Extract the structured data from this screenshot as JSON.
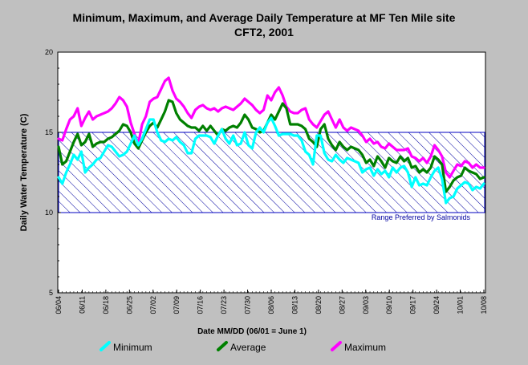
{
  "chart_data": {
    "type": "line",
    "title": "Minimum, Maximum, and Average Daily Temperature at MF Ten Mile site",
    "subtitle": "CFT2, 2001",
    "xlabel": "Date MM/DD (06/01 = June 1)",
    "ylabel": "Daily Water Temperature (C)",
    "ylim": [
      5,
      20
    ],
    "yticks": [
      5,
      10,
      15,
      20
    ],
    "x_start": "06/04",
    "x_end": "10/08",
    "xticks": [
      "06/04",
      "06/11",
      "06/18",
      "06/25",
      "07/02",
      "07/09",
      "07/16",
      "07/23",
      "07/30",
      "08/06",
      "08/13",
      "08/20",
      "08/27",
      "09/03",
      "09/10",
      "09/17",
      "09/24",
      "10/01",
      "10/08"
    ],
    "grid": false,
    "legend_position": "bottom",
    "band": {
      "y0": 10,
      "y1": 15,
      "label": "Range Preferred by Salmonids",
      "color": "#0000a0"
    },
    "series": [
      {
        "name": "Minimum",
        "color": "#00ffff",
        "values": [
          12.2,
          11.8,
          12.5,
          13.0,
          13.6,
          13.3,
          13.8,
          12.5,
          12.8,
          13.0,
          13.3,
          13.4,
          13.8,
          14.2,
          14.1,
          13.8,
          13.5,
          13.6,
          13.8,
          14.3,
          14.8,
          14.2,
          14.6,
          15.2,
          15.8,
          15.8,
          15.0,
          14.5,
          14.4,
          14.6,
          14.5,
          14.7,
          14.4,
          14.2,
          13.7,
          13.7,
          14.6,
          14.8,
          14.8,
          14.8,
          14.7,
          14.3,
          14.8,
          15.2,
          14.6,
          14.3,
          14.8,
          14.2,
          14.3,
          15.0,
          14.2,
          14.0,
          15.0,
          15.3,
          15.0,
          15.6,
          15.9,
          15.4,
          14.8,
          14.9,
          14.9,
          14.9,
          14.8,
          14.8,
          14.5,
          13.8,
          13.6,
          13.0,
          14.8,
          14.8,
          13.7,
          13.3,
          13.2,
          13.6,
          13.3,
          13.1,
          13.4,
          13.3,
          13.2,
          13.1,
          12.5,
          12.7,
          12.8,
          12.3,
          12.7,
          12.4,
          12.6,
          12.2,
          12.8,
          12.5,
          12.8,
          12.9,
          12.5,
          11.6,
          12.2,
          11.7,
          11.8,
          11.7,
          12.2,
          12.6,
          12.8,
          12.1,
          10.6,
          10.9,
          11.0,
          11.5,
          11.7,
          11.9,
          11.8,
          11.4,
          11.6,
          11.5,
          11.8
        ],
        "label": "Minimum"
      },
      {
        "name": "Average",
        "color": "#008000",
        "values": [
          14.1,
          13.0,
          13.2,
          13.8,
          14.4,
          14.9,
          14.2,
          14.4,
          14.9,
          14.1,
          14.3,
          14.4,
          14.4,
          14.6,
          14.7,
          14.9,
          15.1,
          15.5,
          15.4,
          15.0,
          14.3,
          14.0,
          14.5,
          15.0,
          15.4,
          15.6,
          15.3,
          15.8,
          16.3,
          17.0,
          16.9,
          16.2,
          15.8,
          15.6,
          15.4,
          15.3,
          15.3,
          15.1,
          15.4,
          15.1,
          15.4,
          15.1,
          14.8,
          15.2,
          15.1,
          15.3,
          15.4,
          15.3,
          15.6,
          16.1,
          15.8,
          15.3,
          15.2,
          15.0,
          15.1,
          15.6,
          16.1,
          15.8,
          16.3,
          16.8,
          16.5,
          15.5,
          15.5,
          15.5,
          15.4,
          15.2,
          14.6,
          14.4,
          14.1,
          15.2,
          15.5,
          14.6,
          14.2,
          13.9,
          14.4,
          14.1,
          13.9,
          14.1,
          14.0,
          13.9,
          13.6,
          13.1,
          13.3,
          12.9,
          13.5,
          13.2,
          12.8,
          13.4,
          13.2,
          13.1,
          13.5,
          13.2,
          13.4,
          12.8,
          12.9,
          12.5,
          12.7,
          12.5,
          12.8,
          13.5,
          13.3,
          13.0,
          11.3,
          11.6,
          12.0,
          12.2,
          12.3,
          12.8,
          12.6,
          12.5,
          12.4,
          12.1,
          12.2
        ],
        "label": "Average"
      },
      {
        "name": "Maximum",
        "color": "#ff00ff",
        "values": [
          14.6,
          14.5,
          15.2,
          15.8,
          16.0,
          16.5,
          15.4,
          15.9,
          16.3,
          15.8,
          16.0,
          16.1,
          16.2,
          16.3,
          16.5,
          16.8,
          17.2,
          17.0,
          16.6,
          15.6,
          14.9,
          14.3,
          15.5,
          16.0,
          16.9,
          17.1,
          17.2,
          17.7,
          18.2,
          18.4,
          17.6,
          17.1,
          16.9,
          16.6,
          16.2,
          15.9,
          16.4,
          16.6,
          16.7,
          16.5,
          16.4,
          16.5,
          16.3,
          16.5,
          16.6,
          16.5,
          16.4,
          16.6,
          16.8,
          17.1,
          16.9,
          16.7,
          16.4,
          16.2,
          16.4,
          17.3,
          17.0,
          17.5,
          17.8,
          17.3,
          16.6,
          16.3,
          16.2,
          16.2,
          16.4,
          16.5,
          15.8,
          15.5,
          15.3,
          15.7,
          16.1,
          16.3,
          15.8,
          15.3,
          15.8,
          15.3,
          15.1,
          15.3,
          15.2,
          15.1,
          14.8,
          14.4,
          14.6,
          14.3,
          14.4,
          14.1,
          14.0,
          14.3,
          14.1,
          13.9,
          13.9,
          13.9,
          14.0,
          13.5,
          13.4,
          13.2,
          13.4,
          13.1,
          13.5,
          14.2,
          13.9,
          13.5,
          12.5,
          12.2,
          12.6,
          13.0,
          12.9,
          13.2,
          13.1,
          12.8,
          13.0,
          12.8,
          12.8
        ],
        "label": "Maximum"
      }
    ]
  }
}
